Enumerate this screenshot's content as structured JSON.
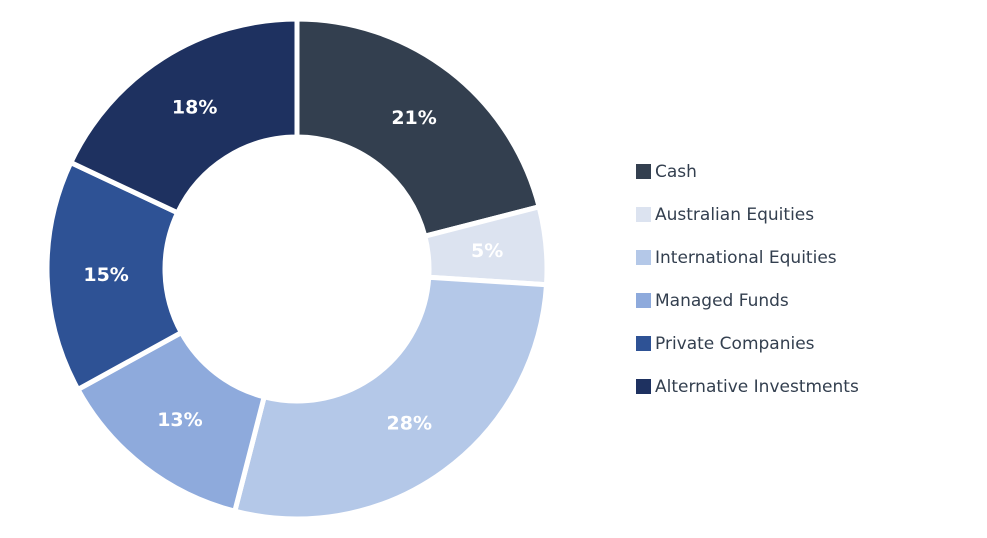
{
  "chart_data": {
    "type": "pie",
    "variant": "donut",
    "title": "",
    "categories": [
      "Cash",
      "Australian Equities",
      "International Equities",
      "Managed Funds",
      "Private Companies",
      "Alternative Investments"
    ],
    "values": [
      21,
      5,
      28,
      13,
      15,
      18
    ],
    "labels": [
      "21%",
      "5%",
      "28%",
      "13%",
      "15%",
      "18%"
    ],
    "colors": [
      "#333f4f",
      "#dce3f0",
      "#b4c8e8",
      "#8eaadc",
      "#2e5295",
      "#1e3160"
    ],
    "legend": {
      "position": "right",
      "entries": [
        {
          "label": "Cash",
          "color": "#333f4f"
        },
        {
          "label": "Australian Equities",
          "color": "#dce3f0"
        },
        {
          "label": "International Equities",
          "color": "#b4c8e8"
        },
        {
          "label": "Managed Funds",
          "color": "#8eaadc"
        },
        {
          "label": "Private Companies",
          "color": "#2e5295"
        },
        {
          "label": "Alternative Investments",
          "color": "#1e3160"
        }
      ]
    }
  }
}
